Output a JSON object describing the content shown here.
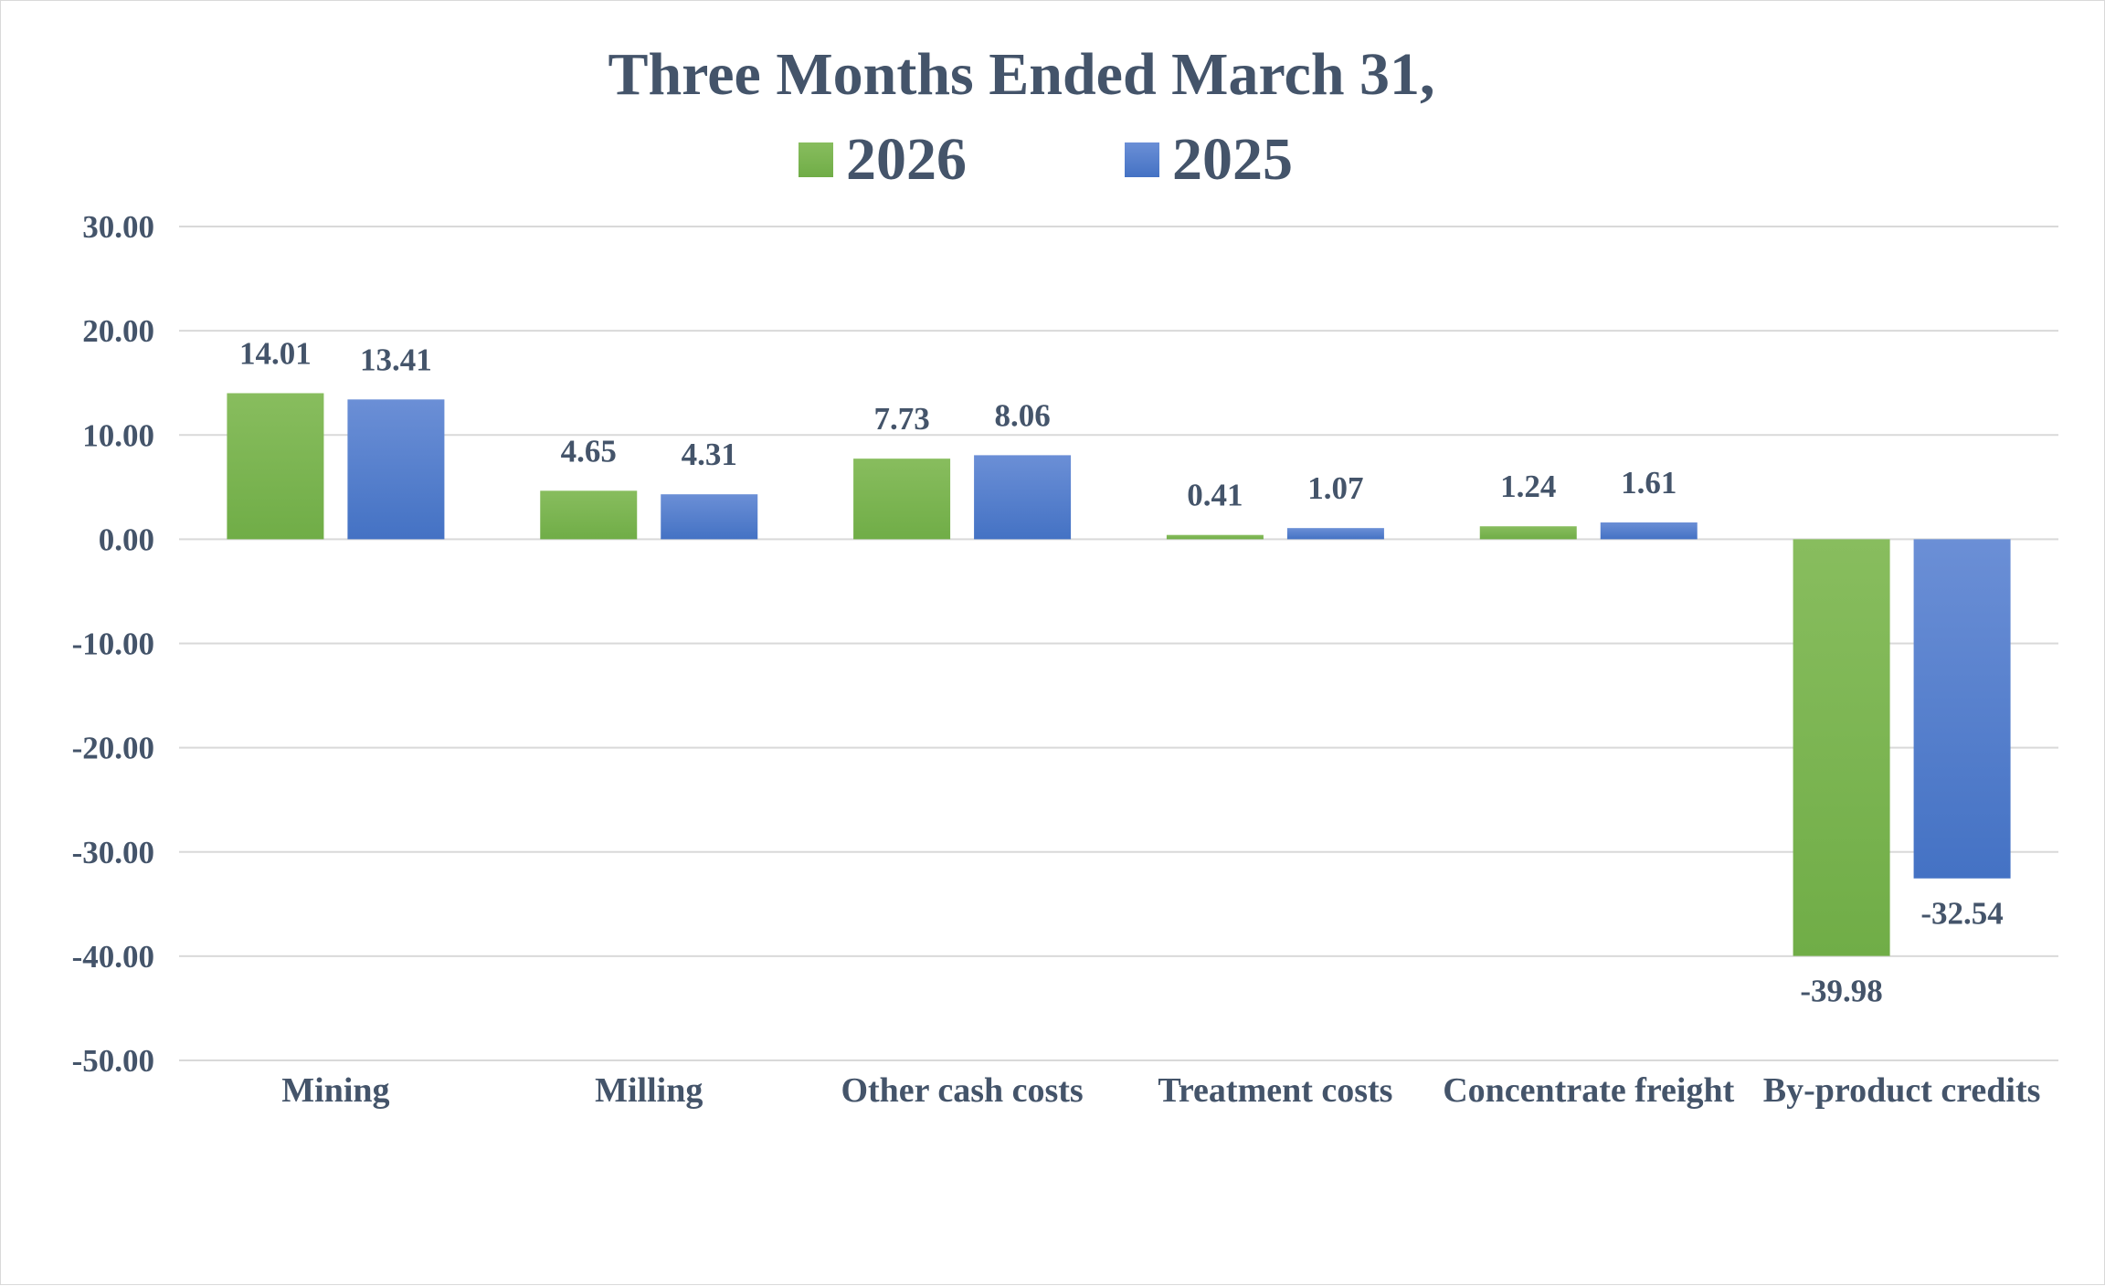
{
  "chart_data": {
    "type": "bar",
    "title": "Three Months Ended March 31,",
    "categories": [
      "Mining",
      "Milling",
      "Other cash costs",
      "Treatment costs",
      "Concentrate freight",
      "By-product credits"
    ],
    "series": [
      {
        "name": "2026",
        "color": "#70ad47",
        "color_light": "#88bd5e",
        "values": [
          14.01,
          4.65,
          7.73,
          0.41,
          1.24,
          -39.98
        ],
        "labels": [
          "14.01",
          "4.65",
          "7.73",
          "0.41",
          "1.24",
          "-39.98"
        ]
      },
      {
        "name": "2025",
        "color": "#4472c4",
        "color_light": "#6b8fd6",
        "values": [
          13.41,
          4.31,
          8.06,
          1.07,
          1.61,
          -32.54
        ],
        "labels": [
          "13.41",
          "4.31",
          "8.06",
          "1.07",
          "1.61",
          "-32.54"
        ]
      }
    ],
    "ylim": [
      -50,
      30
    ],
    "yticks": [
      30,
      20,
      10,
      0,
      -10,
      -20,
      -30,
      -40,
      -50
    ],
    "ytick_labels": [
      "30.00",
      "20.00",
      "10.00",
      "0.00",
      "-10.00",
      "-20.00",
      "-30.00",
      "-40.00",
      "-50.00"
    ],
    "grid": true,
    "legend_position": "top-center",
    "xlabel": "",
    "ylabel": ""
  }
}
